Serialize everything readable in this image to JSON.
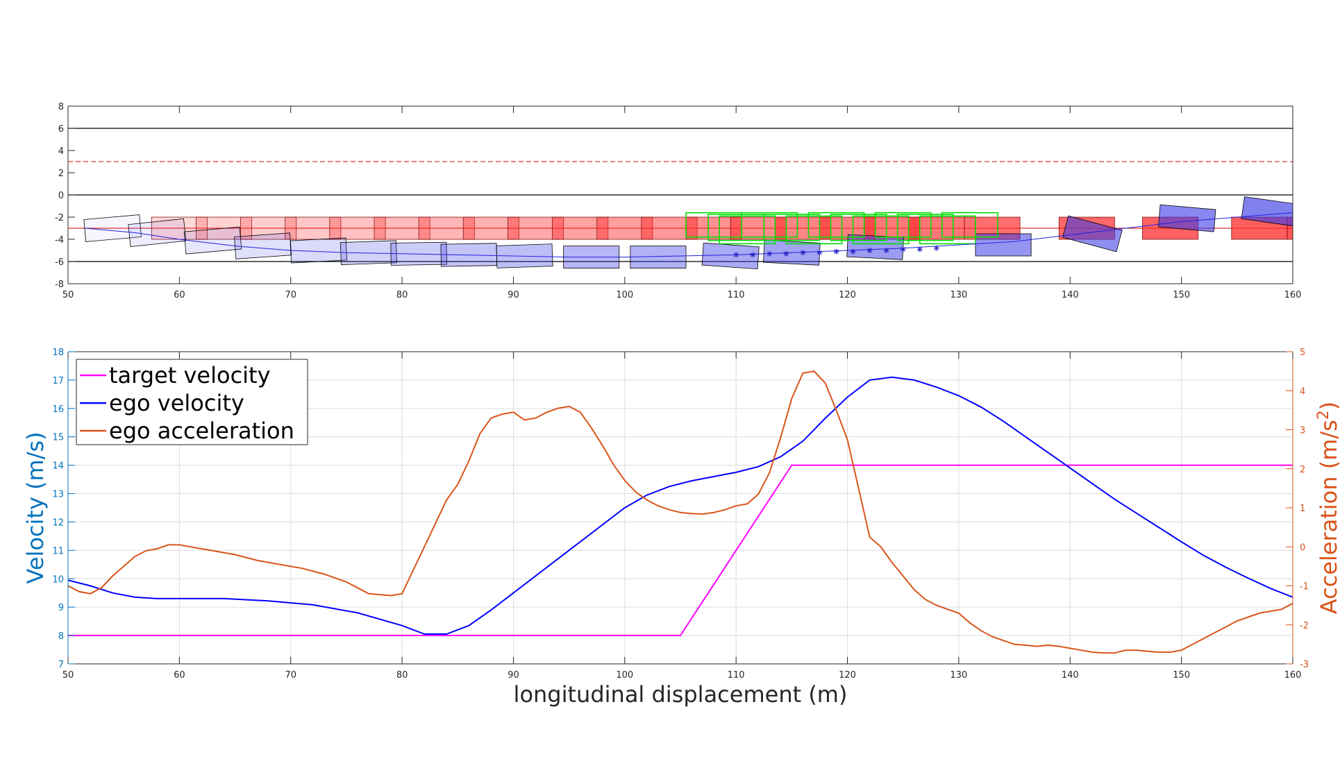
{
  "chart_data": [
    {
      "type": "scatter",
      "xlim": [
        50,
        160
      ],
      "ylim": [
        -8,
        8
      ],
      "xticks": [
        50,
        60,
        70,
        80,
        90,
        100,
        110,
        120,
        130,
        140,
        150,
        160
      ],
      "yticks": [
        -8,
        -6,
        -4,
        -2,
        0,
        2,
        4,
        6,
        8
      ],
      "lane_lines": [
        -6,
        0,
        6
      ],
      "red_dashed_line": 3,
      "red_reference_line": -3,
      "ego_path": [
        [
          51.5,
          -3
        ],
        [
          56,
          -3.4
        ],
        [
          60,
          -4
        ],
        [
          65,
          -4.6
        ],
        [
          70,
          -5
        ],
        [
          75,
          -5.2
        ],
        [
          80,
          -5.3
        ],
        [
          85,
          -5.4
        ],
        [
          90,
          -5.5
        ],
        [
          95,
          -5.6
        ],
        [
          100,
          -5.6
        ],
        [
          105,
          -5.5
        ],
        [
          110,
          -5.4
        ],
        [
          115,
          -5.2
        ],
        [
          120,
          -5
        ],
        [
          125,
          -4.8
        ],
        [
          130,
          -4.5
        ],
        [
          135,
          -4.2
        ],
        [
          140,
          -3.6
        ],
        [
          145,
          -3
        ],
        [
          150,
          -2.4
        ],
        [
          155,
          -2
        ],
        [
          160,
          -1.6
        ]
      ],
      "ego_boxes": [
        [
          54,
          -3,
          -5
        ],
        [
          58,
          -3.4,
          -6
        ],
        [
          63,
          -4.1,
          -5
        ],
        [
          67.5,
          -4.6,
          -4
        ],
        [
          72.5,
          -5,
          -3
        ],
        [
          77,
          -5.2,
          -2
        ],
        [
          81.5,
          -5.3,
          -1
        ],
        [
          86,
          -5.4,
          -1
        ],
        [
          91,
          -5.5,
          -2
        ],
        [
          97,
          -5.6,
          0
        ],
        [
          103,
          -5.6,
          0
        ],
        [
          109.5,
          -5.5,
          4
        ],
        [
          115,
          -5.2,
          3
        ],
        [
          122.5,
          -4.7,
          3
        ],
        [
          134,
          -4.5,
          0
        ],
        [
          142,
          -3.5,
          15
        ],
        [
          150.5,
          -2.1,
          5
        ],
        [
          158,
          -1.5,
          8
        ]
      ],
      "ego_markers": [
        [
          110,
          -5.4
        ],
        [
          111.5,
          -5.4
        ],
        [
          113,
          -5.3
        ],
        [
          114.5,
          -5.3
        ],
        [
          116,
          -5.2
        ],
        [
          117.5,
          -5.2
        ],
        [
          119,
          -5.1
        ],
        [
          120.5,
          -5.1
        ],
        [
          122,
          -5
        ],
        [
          123.5,
          -5
        ],
        [
          125,
          -4.9
        ],
        [
          126.5,
          -4.9
        ],
        [
          128,
          -4.8
        ]
      ],
      "target_boxes": [
        60,
        64,
        68,
        72,
        76,
        80,
        84,
        88,
        92,
        96,
        100,
        104,
        108,
        112,
        116,
        120,
        124,
        128,
        133,
        141.5,
        149,
        157,
        162
      ],
      "prediction_boxes": [
        108,
        110,
        111,
        113,
        115,
        117,
        119,
        121,
        123,
        125,
        127,
        129,
        131
      ]
    },
    {
      "type": "line",
      "xlabel": "longitudinal displacement (m)",
      "ylabel": "Velocity (m/s)",
      "ylabel_right": "Acceleration (m/s",
      "ylabel_right_sup": "2",
      "ylabel_right_close": ")",
      "xlim": [
        50,
        160
      ],
      "ylim": [
        7,
        18
      ],
      "ylim_right": [
        -3,
        5
      ],
      "xticks": [
        50,
        60,
        70,
        80,
        90,
        100,
        110,
        120,
        130,
        140,
        150,
        160
      ],
      "yticks": [
        7,
        8,
        9,
        10,
        11,
        12,
        13,
        14,
        15,
        16,
        17,
        18
      ],
      "yticks_right": [
        -3,
        -2,
        -1,
        0,
        1,
        2,
        3,
        4,
        5
      ],
      "grid": true,
      "legend_position": "top-left",
      "series": [
        {
          "name": "target velocity",
          "axis": "left",
          "color": "#ff00ff",
          "points": [
            [
              50,
              8
            ],
            [
              105,
              8
            ],
            [
              115,
              14
            ],
            [
              160,
              14
            ]
          ]
        },
        {
          "name": "ego velocity",
          "axis": "left",
          "color": "#0000ff",
          "points": [
            [
              50,
              9.95
            ],
            [
              52,
              9.75
            ],
            [
              54,
              9.5
            ],
            [
              56,
              9.35
            ],
            [
              58,
              9.3
            ],
            [
              60,
              9.3
            ],
            [
              64,
              9.3
            ],
            [
              68,
              9.22
            ],
            [
              72,
              9.08
            ],
            [
              76,
              8.8
            ],
            [
              80,
              8.35
            ],
            [
              82,
              8.05
            ],
            [
              84,
              8.05
            ],
            [
              86,
              8.35
            ],
            [
              88,
              8.9
            ],
            [
              90,
              9.5
            ],
            [
              92,
              10.1
            ],
            [
              94,
              10.7
            ],
            [
              96,
              11.3
            ],
            [
              98,
              11.9
            ],
            [
              100,
              12.5
            ],
            [
              102,
              12.95
            ],
            [
              104,
              13.25
            ],
            [
              106,
              13.45
            ],
            [
              108,
              13.6
            ],
            [
              110,
              13.75
            ],
            [
              112,
              13.95
            ],
            [
              114,
              14.3
            ],
            [
              116,
              14.85
            ],
            [
              118,
              15.65
            ],
            [
              120,
              16.4
            ],
            [
              122,
              17
            ],
            [
              124,
              17.1
            ],
            [
              126,
              17
            ],
            [
              128,
              16.75
            ],
            [
              130,
              16.45
            ],
            [
              132,
              16.05
            ],
            [
              134,
              15.55
            ],
            [
              136,
              15
            ],
            [
              138,
              14.45
            ],
            [
              140,
              13.9
            ],
            [
              142,
              13.35
            ],
            [
              144,
              12.8
            ],
            [
              146,
              12.3
            ],
            [
              148,
              11.8
            ],
            [
              150,
              11.3
            ],
            [
              152,
              10.82
            ],
            [
              154,
              10.4
            ],
            [
              156,
              10.02
            ],
            [
              158,
              9.66
            ],
            [
              160,
              9.35
            ]
          ]
        },
        {
          "name": "ego acceleration",
          "axis": "right",
          "color": "#d95319",
          "points": [
            [
              50,
              -1
            ],
            [
              51,
              -1.15
            ],
            [
              52,
              -1.2
            ],
            [
              53,
              -1.05
            ],
            [
              54,
              -0.75
            ],
            [
              55,
              -0.5
            ],
            [
              56,
              -0.25
            ],
            [
              57,
              -0.1
            ],
            [
              58,
              -0.05
            ],
            [
              59,
              0.05
            ],
            [
              60,
              0.05
            ],
            [
              61,
              0
            ],
            [
              63,
              -0.1
            ],
            [
              65,
              -0.2
            ],
            [
              67,
              -0.35
            ],
            [
              69,
              -0.45
            ],
            [
              71,
              -0.55
            ],
            [
              73,
              -0.7
            ],
            [
              75,
              -0.9
            ],
            [
              77,
              -1.2
            ],
            [
              79,
              -1.25
            ],
            [
              80,
              -1.2
            ],
            [
              81,
              -0.6
            ],
            [
              82,
              0
            ],
            [
              83,
              0.6
            ],
            [
              84,
              1.2
            ],
            [
              85,
              1.6
            ],
            [
              86,
              2.2
            ],
            [
              87,
              2.9
            ],
            [
              88,
              3.3
            ],
            [
              89,
              3.4
            ],
            [
              90,
              3.45
            ],
            [
              91,
              3.25
            ],
            [
              92,
              3.3
            ],
            [
              93,
              3.45
            ],
            [
              94,
              3.55
            ],
            [
              95,
              3.6
            ],
            [
              96,
              3.45
            ],
            [
              97,
              3.05
            ],
            [
              98,
              2.6
            ],
            [
              99,
              2.1
            ],
            [
              100,
              1.7
            ],
            [
              101,
              1.4
            ],
            [
              102,
              1.2
            ],
            [
              103,
              1.05
            ],
            [
              104,
              0.95
            ],
            [
              105,
              0.88
            ],
            [
              106,
              0.85
            ],
            [
              107,
              0.84
            ],
            [
              108,
              0.88
            ],
            [
              109,
              0.95
            ],
            [
              110,
              1.05
            ],
            [
              111,
              1.1
            ],
            [
              112,
              1.35
            ],
            [
              113,
              1.9
            ],
            [
              114,
              2.8
            ],
            [
              115,
              3.8
            ],
            [
              116,
              4.45
            ],
            [
              117,
              4.5
            ],
            [
              118,
              4.2
            ],
            [
              119,
              3.5
            ],
            [
              120,
              2.75
            ],
            [
              121,
              1.5
            ],
            [
              122,
              0.25
            ],
            [
              123,
              0
            ],
            [
              124,
              -0.4
            ],
            [
              125,
              -0.75
            ],
            [
              126,
              -1.1
            ],
            [
              127,
              -1.35
            ],
            [
              128,
              -1.5
            ],
            [
              129,
              -1.6
            ],
            [
              130,
              -1.7
            ],
            [
              131,
              -1.95
            ],
            [
              132,
              -2.15
            ],
            [
              133,
              -2.3
            ],
            [
              134,
              -2.4
            ],
            [
              135,
              -2.5
            ],
            [
              136,
              -2.52
            ],
            [
              137,
              -2.55
            ],
            [
              138,
              -2.52
            ],
            [
              139,
              -2.55
            ],
            [
              140,
              -2.6
            ],
            [
              141,
              -2.65
            ],
            [
              142,
              -2.7
            ],
            [
              143,
              -2.72
            ],
            [
              144,
              -2.72
            ],
            [
              145,
              -2.65
            ],
            [
              146,
              -2.65
            ],
            [
              147,
              -2.68
            ],
            [
              148,
              -2.7
            ],
            [
              149,
              -2.7
            ],
            [
              150,
              -2.65
            ],
            [
              151,
              -2.5
            ],
            [
              152,
              -2.35
            ],
            [
              153,
              -2.2
            ],
            [
              154,
              -2.05
            ],
            [
              155,
              -1.9
            ],
            [
              156,
              -1.8
            ],
            [
              157,
              -1.7
            ],
            [
              158,
              -1.65
            ],
            [
              159,
              -1.6
            ],
            [
              160,
              -1.45
            ]
          ]
        }
      ]
    }
  ]
}
